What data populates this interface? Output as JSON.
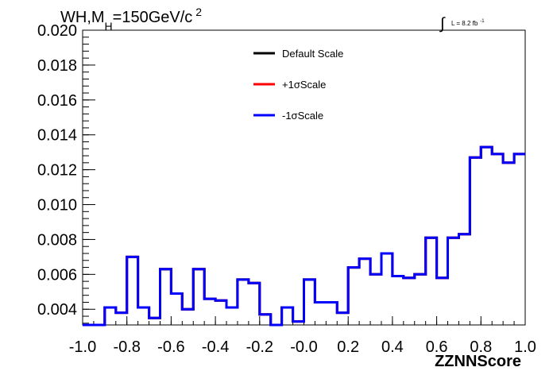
{
  "chart_data": {
    "type": "line",
    "title_main": "WH,M",
    "title_sub": "H",
    "title_rest": "=150GeV/c",
    "title_sup": "2",
    "lumi_label": "L = 8.2 fb",
    "lumi_sup": "-1",
    "xlabel": "ZZNNScore",
    "ylabel": "",
    "xlim": [
      -1.0,
      1.0
    ],
    "ylim": [
      0.0031,
      0.02
    ],
    "x_ticks": [
      "-1.0",
      "-0.8",
      "-0.6",
      "-0.4",
      "-0.2",
      "-0.0",
      "0.2",
      "0.4",
      "0.6",
      "0.8",
      "1.0"
    ],
    "y_ticks": [
      "0.004",
      "0.006",
      "0.008",
      "0.010",
      "0.012",
      "0.014",
      "0.016",
      "0.018",
      "0.020"
    ],
    "bin_edges": [
      -1.0,
      -0.95,
      -0.9,
      -0.85,
      -0.8,
      -0.75,
      -0.7,
      -0.65,
      -0.6,
      -0.55,
      -0.5,
      -0.45,
      -0.4,
      -0.35,
      -0.3,
      -0.25,
      -0.2,
      -0.15,
      -0.1,
      -0.05,
      0.0,
      0.05,
      0.1,
      0.15,
      0.2,
      0.25,
      0.3,
      0.35,
      0.4,
      0.45,
      0.5,
      0.55,
      0.6,
      0.65,
      0.7,
      0.75,
      0.8,
      0.85,
      0.9,
      0.95,
      1.0
    ],
    "legend_position": "top-center",
    "series": [
      {
        "name": "Default Scale",
        "color": "#000000",
        "values": [
          0.0031,
          0.0031,
          0.0041,
          0.0038,
          0.007,
          0.0041,
          0.0035,
          0.0063,
          0.0049,
          0.004,
          0.0063,
          0.0046,
          0.0045,
          0.0041,
          0.0057,
          0.0055,
          0.0037,
          0.0031,
          0.0041,
          0.0033,
          0.0057,
          0.0044,
          0.0044,
          0.0038,
          0.0064,
          0.0069,
          0.006,
          0.0072,
          0.0059,
          0.0058,
          0.006,
          0.0081,
          0.0058,
          0.0081,
          0.0083,
          0.0127,
          0.0133,
          0.0129,
          0.0124,
          0.0129
        ]
      },
      {
        "name": "+1σScale",
        "color": "#ff0000",
        "values": [
          0.0031,
          0.0031,
          0.0041,
          0.0038,
          0.007,
          0.0041,
          0.0035,
          0.0063,
          0.0049,
          0.004,
          0.0063,
          0.0046,
          0.0045,
          0.0041,
          0.0057,
          0.0055,
          0.0037,
          0.0031,
          0.0041,
          0.0033,
          0.0057,
          0.0044,
          0.0044,
          0.0038,
          0.0064,
          0.0069,
          0.006,
          0.0072,
          0.0059,
          0.0058,
          0.006,
          0.0081,
          0.0058,
          0.0081,
          0.0083,
          0.0127,
          0.0133,
          0.0129,
          0.0124,
          0.0129
        ]
      },
      {
        "name": "-1σScale",
        "color": "#0000ff",
        "values": [
          0.0031,
          0.0031,
          0.0041,
          0.0038,
          0.007,
          0.0041,
          0.0035,
          0.0063,
          0.0049,
          0.004,
          0.0063,
          0.0046,
          0.0045,
          0.0041,
          0.0057,
          0.0055,
          0.0037,
          0.0031,
          0.0041,
          0.0033,
          0.0057,
          0.0044,
          0.0044,
          0.0038,
          0.0064,
          0.0069,
          0.006,
          0.0072,
          0.0059,
          0.0058,
          0.006,
          0.0081,
          0.0058,
          0.0081,
          0.0083,
          0.0127,
          0.0133,
          0.0129,
          0.0124,
          0.0129
        ]
      }
    ]
  }
}
